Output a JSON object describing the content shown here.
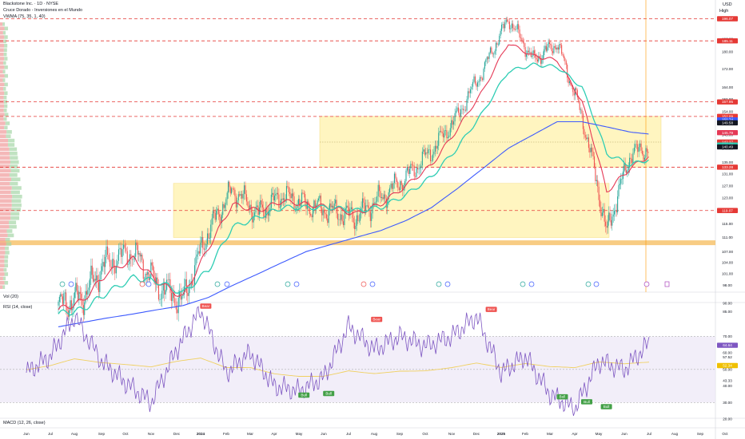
{
  "header": {
    "title": "Blackstone Inc. · 1D · NYSE",
    "indicator1": "Cruce Dorado - Inversiones en el Mundo",
    "indicator2": "VWMA (75, 35, 1, 40)",
    "currency": "USD",
    "high_label": "High"
  },
  "panes": {
    "vol_label": "Vol (20)",
    "rsi_label": "RSI (14, close)",
    "macd_label": "MACD (12, 26, close)"
  },
  "colors": {
    "candle_up": "#26a69a",
    "candle_down": "#ef5350",
    "ema_fast": "#e53956",
    "ema_slow": "#2ecdb4",
    "sma_long": "#3d5afe",
    "resistance": "#e53935",
    "zone": "#fff3b0",
    "rsi_line": "#7e57c2",
    "rsi_band": "#ede7f6",
    "volume_profile": "#ef9a9a",
    "poc": "#f5b041"
  },
  "chart_data": [
    {
      "type": "line",
      "title": "Blackstone Inc. · 1D · NYSE",
      "price_axis_ticks": [
        98.0,
        101.0,
        104.0,
        107.0,
        111.0,
        115.0,
        119.0,
        123.0,
        127.0,
        131.0,
        135.0,
        140.0,
        145.0,
        150.0,
        154.0,
        159.0,
        164.0,
        172.0,
        180.0,
        186.0,
        196.0
      ],
      "time_axis_ticks": [
        "Jun",
        "Jul",
        "Aug",
        "Sep",
        "Oct",
        "Nov",
        "Dec",
        "2024",
        "Feb",
        "Mar",
        "Apr",
        "May",
        "Jun",
        "Jul",
        "Aug",
        "Sep",
        "Oct",
        "Nov",
        "Dec",
        "2025",
        "Feb",
        "Mar",
        "Apr",
        "May",
        "Jun",
        "Jul",
        "Aug",
        "Sep",
        "Oct"
      ],
      "horizontal_levels": [
        196.07,
        185.11,
        157.95,
        152.09,
        133.28,
        119.07
      ],
      "price_tags": [
        {
          "text": "196.07",
          "color": "#e53935"
        },
        {
          "text": "185.11",
          "color": "#e53935"
        },
        {
          "text": "157.95",
          "color": "#e53935"
        },
        {
          "text": "152.09",
          "color": "#e53935"
        },
        {
          "text": "150.74",
          "color": "#3d5afe"
        },
        {
          "text": "149.58",
          "color": "#131722"
        },
        {
          "text": "145.79",
          "color": "#e53956"
        },
        {
          "text": "142.27",
          "color": "#e53935"
        },
        {
          "text": "141.17",
          "color": "#2ecdb4"
        },
        {
          "text": "140.49",
          "color": "#131722"
        },
        {
          "text": "133.28",
          "color": "#e53935"
        },
        {
          "text": "119.07",
          "color": "#e53935"
        }
      ],
      "zones": [
        {
          "low": 133.3,
          "high": 152.1,
          "from": "Sep 2024",
          "to": "Jul 2025"
        },
        {
          "low": 111.0,
          "high": 127.8,
          "from": "Dec 2023",
          "to": "Apr 2025"
        }
      ],
      "series": [
        {
          "name": "",
          "role": "price",
          "x": [
            "Jun 2023",
            "Jul 2023",
            "Aug 2023",
            "Sep 2023",
            "Oct 2023",
            "Nov 2023",
            "Dec 2023",
            "Jan 2024",
            "Feb 2024",
            "Mar 2024",
            "Apr 2024",
            "May 2024",
            "Jun 2024",
            "Jul 2024",
            "Aug 2024",
            "Sep 2024",
            "Oct 2024",
            "Nov 2024",
            "Dec 2024",
            "Jan 2025",
            "Feb 2025",
            "Mar 2025",
            "Apr 2025",
            "May 2025",
            "Jun 2025",
            "Jul 2025"
          ],
          "values": [
            93,
            95,
            104,
            107,
            98,
            94,
            113,
            126,
            118,
            124,
            121,
            119,
            117,
            123,
            130,
            139,
            152,
            172,
            196,
            176,
            184,
            152,
            112,
            138,
            141,
            150
          ]
        },
        {
          "name": "",
          "role": "ema_fast",
          "x": [
            "Jun 2023",
            "Jul 2023",
            "Aug 2023",
            "Sep 2023",
            "Oct 2023",
            "Nov 2023",
            "Dec 2023",
            "Jan 2024",
            "Feb 2024",
            "Mar 2024",
            "Apr 2024",
            "May 2024",
            "Jun 2024",
            "Jul 2024",
            "Aug 2024",
            "Sep 2024",
            "Oct 2024",
            "Nov 2024",
            "Dec 2024",
            "Jan 2025",
            "Feb 2025",
            "Mar 2025",
            "Apr 2025",
            "May 2025",
            "Jun 2025",
            "Jul 2025"
          ],
          "values": [
            92,
            94,
            101,
            105,
            99,
            95,
            108,
            121,
            119,
            122,
            121,
            120,
            118,
            121,
            127,
            134,
            147,
            163,
            184,
            178,
            176,
            158,
            125,
            133,
            139,
            146
          ]
        },
        {
          "name": "",
          "role": "ema_slow",
          "x": [
            "Jun 2023",
            "Jul 2023",
            "Aug 2023",
            "Sep 2023",
            "Oct 2023",
            "Nov 2023",
            "Dec 2023",
            "Jan 2024",
            "Feb 2024",
            "Mar 2024",
            "Apr 2024",
            "May 2024",
            "Jun 2024",
            "Jul 2024",
            "Aug 2024",
            "Sep 2024",
            "Oct 2024",
            "Nov 2024",
            "Dec 2024",
            "Jan 2025",
            "Feb 2025",
            "Mar 2025",
            "Apr 2025",
            "May 2025",
            "Jun 2025",
            "Jul 2025"
          ],
          "values": [
            91,
            92,
            96,
            100,
            99,
            96,
            102,
            114,
            117,
            120,
            120,
            120,
            119,
            120,
            124,
            130,
            140,
            154,
            171,
            174,
            173,
            164,
            138,
            134,
            137,
            141
          ]
        },
        {
          "name": "",
          "role": "sma_long",
          "x": [
            "Jun 2023",
            "Jul 2023",
            "Aug 2023",
            "Sep 2023",
            "Oct 2023",
            "Nov 2023",
            "Dec 2023",
            "Jan 2024",
            "Feb 2024",
            "Mar 2024",
            "Apr 2024",
            "May 2024",
            "Jun 2024",
            "Jul 2024",
            "Aug 2024",
            "Sep 2024",
            "Oct 2024",
            "Nov 2024",
            "Dec 2024",
            "Jan 2025",
            "Feb 2025",
            "Mar 2025",
            "Apr 2025",
            "May 2025",
            "Jun 2025",
            "Jul 2025"
          ],
          "values": [
            88,
            89,
            90,
            91,
            92,
            93,
            95,
            98,
            101,
            104,
            107,
            109,
            111,
            113,
            116,
            120,
            126,
            133,
            140,
            145,
            150,
            150,
            148,
            146,
            145,
            146
          ]
        }
      ]
    },
    {
      "type": "line",
      "title": "RSI (14, close)",
      "yticks": [
        90.0,
        85.0,
        70.0,
        60.0,
        57.52,
        52.34,
        50.0,
        43.33,
        40.0,
        30.0,
        20.0
      ],
      "value_tags": [
        {
          "text": "64.64",
          "color": "#7e57c2"
        },
        {
          "text": "52.34",
          "color": "#f0c000"
        }
      ],
      "band": [
        30,
        70
      ],
      "ylim": [
        20,
        90
      ],
      "series": [
        {
          "name": "",
          "x": [
            "Jun 2023",
            "Jul 2023",
            "Aug 2023",
            "Sep 2023",
            "Oct 2023",
            "Nov 2023",
            "Dec 2023",
            "Jan 2024",
            "Feb 2024",
            "Mar 2024",
            "Apr 2024",
            "May 2024",
            "Jun 2024",
            "Jul 2024",
            "Aug 2024",
            "Sep 2024",
            "Oct 2024",
            "Nov 2024",
            "Dec 2024",
            "Jan 2025",
            "Feb 2025",
            "Mar 2025",
            "Apr 2025",
            "May 2025",
            "Jun 2025",
            "Jul 2025"
          ],
          "values": [
            48,
            58,
            82,
            55,
            42,
            30,
            62,
            86,
            48,
            60,
            40,
            37,
            45,
            76,
            62,
            70,
            64,
            70,
            82,
            48,
            58,
            35,
            26,
            55,
            50,
            66
          ]
        }
      ],
      "annotations": [
        {
          "label": "Bear",
          "x": "Jan 2024",
          "value": 86
        },
        {
          "label": "Bear",
          "x": "Aug 2024",
          "value": 78
        },
        {
          "label": "Bear",
          "x": "Dec 2024",
          "value": 84
        },
        {
          "label": "Bull",
          "x": "May 2024",
          "value": 37
        },
        {
          "label": "Bull",
          "x": "Jun 2024",
          "value": 38
        },
        {
          "label": "Bull",
          "x": "Mar 2025",
          "value": 36
        },
        {
          "label": "Bull",
          "x": "Apr 2025",
          "value": 33
        },
        {
          "label": "Bull",
          "x": "May 2025",
          "value": 30
        }
      ]
    }
  ]
}
